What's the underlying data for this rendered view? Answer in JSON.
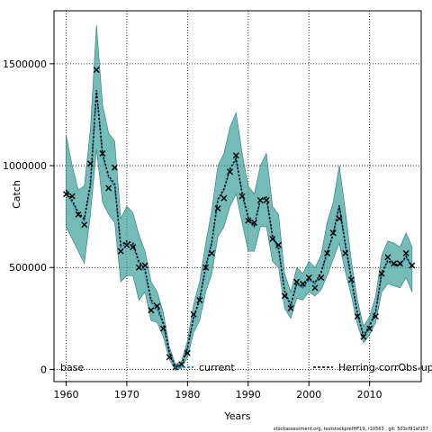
{
  "chart_data": {
    "type": "line",
    "xlabel": "Years",
    "ylabel": "Catch",
    "xlim": [
      1958,
      2018.5
    ],
    "ylim": [
      -60000,
      1760000
    ],
    "x_ticks": [
      1960,
      1970,
      1980,
      1990,
      2000,
      2010
    ],
    "y_ticks": [
      0,
      500000,
      1000000,
      1500000
    ],
    "x_tick_labels": [
      "1960",
      "1970",
      "1980",
      "1990",
      "2000",
      "2010"
    ],
    "y_tick_labels": [
      "0",
      "500000",
      "1000000",
      "1500000"
    ],
    "grid": true,
    "legend": {
      "placement": "bottom",
      "items": [
        {
          "label": "base",
          "color": "#000000",
          "style": "none"
        },
        {
          "label": "current",
          "color": "#1a6fb0",
          "style": "dashed"
        },
        {
          "label": "Herring-corrObs-up",
          "color": "#000000",
          "style": "dashed"
        }
      ]
    },
    "band_color": "#3a9e9a",
    "footer": "stockassessment.org, teststockprefHF19, r10563 , git: 503cf91af157",
    "series": [
      {
        "name": "current",
        "years": [
          1960,
          1961,
          1962,
          1963,
          1964,
          1965,
          1966,
          1967,
          1968,
          1969,
          1970,
          1971,
          1972,
          1973,
          1974,
          1975,
          1976,
          1977,
          1978,
          1979,
          1980,
          1981,
          1982,
          1983,
          1984,
          1985,
          1986,
          1987,
          1988,
          1989,
          1990,
          1991,
          1992,
          1993,
          1994,
          1995,
          1996,
          1997,
          1998,
          1999,
          2000,
          2001,
          2002,
          2003,
          2004,
          2005,
          2006,
          2007,
          2008,
          2009,
          2010,
          2011,
          2012,
          2013,
          2014,
          2015,
          2016,
          2017
        ],
        "fit": [
          870000,
          820000,
          760000,
          730000,
          900000,
          1360000,
          1050000,
          940000,
          900000,
          600000,
          620000,
          610000,
          520000,
          480000,
          330000,
          300000,
          220000,
          80000,
          10000,
          20000,
          100000,
          250000,
          340000,
          500000,
          620000,
          830000,
          880000,
          980000,
          1030000,
          860000,
          740000,
          700000,
          830000,
          840000,
          650000,
          590000,
          380000,
          310000,
          420000,
          400000,
          440000,
          420000,
          470000,
          570000,
          660000,
          800000,
          610000,
          440000,
          270000,
          160000,
          210000,
          280000,
          470000,
          530000,
          510000,
          510000,
          550000,
          500000
        ],
        "lower": [
          700000,
          640000,
          580000,
          520000,
          760000,
          1080000,
          820000,
          760000,
          720000,
          430000,
          460000,
          460000,
          340000,
          380000,
          240000,
          230000,
          160000,
          50000,
          -5000,
          5000,
          60000,
          180000,
          240000,
          380000,
          470000,
          650000,
          700000,
          800000,
          860000,
          720000,
          580000,
          580000,
          700000,
          700000,
          530000,
          500000,
          300000,
          250000,
          350000,
          340000,
          380000,
          360000,
          390000,
          460000,
          540000,
          620000,
          480000,
          360000,
          220000,
          130000,
          170000,
          230000,
          380000,
          420000,
          410000,
          400000,
          450000,
          380000
        ],
        "upper": [
          1150000,
          1000000,
          880000,
          900000,
          1180000,
          1690000,
          1300000,
          1160000,
          1120000,
          740000,
          800000,
          770000,
          660000,
          580000,
          430000,
          380000,
          280000,
          110000,
          25000,
          40000,
          140000,
          320000,
          430000,
          620000,
          780000,
          1000000,
          1060000,
          1190000,
          1260000,
          1060000,
          900000,
          860000,
          1000000,
          1060000,
          800000,
          760000,
          470000,
          380000,
          500000,
          470000,
          530000,
          500000,
          560000,
          720000,
          820000,
          1000000,
          780000,
          530000,
          340000,
          210000,
          260000,
          360000,
          560000,
          630000,
          620000,
          600000,
          670000,
          600000
        ]
      },
      {
        "name": "Herring-corrObs-up",
        "years": [
          1960,
          1961,
          1962,
          1963,
          1964,
          1965,
          1966,
          1967,
          1968,
          1969,
          1970,
          1971,
          1972,
          1973,
          1974,
          1975,
          1976,
          1977,
          1978,
          1979,
          1980,
          1981,
          1982,
          1983,
          1984,
          1985,
          1986,
          1987,
          1988,
          1989,
          1990,
          1991,
          1992,
          1993,
          1994,
          1995,
          1996,
          1997,
          1998,
          1999,
          2000,
          2001,
          2002,
          2003,
          2004,
          2005,
          2006,
          2007,
          2008,
          2009,
          2010,
          2011,
          2012,
          2013,
          2014,
          2015,
          2016,
          2017
        ],
        "fit": [
          880000,
          830000,
          770000,
          740000,
          910000,
          1370000,
          1060000,
          950000,
          910000,
          610000,
          630000,
          620000,
          530000,
          490000,
          340000,
          310000,
          230000,
          85000,
          12000,
          22000,
          105000,
          255000,
          345000,
          505000,
          625000,
          835000,
          885000,
          985000,
          1035000,
          865000,
          745000,
          705000,
          835000,
          845000,
          655000,
          595000,
          385000,
          315000,
          425000,
          405000,
          445000,
          425000,
          475000,
          575000,
          665000,
          805000,
          615000,
          445000,
          275000,
          165000,
          215000,
          285000,
          475000,
          535000,
          515000,
          515000,
          555000,
          505000
        ]
      }
    ],
    "observed": {
      "name": "base",
      "years": [
        1960,
        1961,
        1962,
        1963,
        1964,
        1965,
        1966,
        1967,
        1968,
        1969,
        1970,
        1971,
        1972,
        1973,
        1974,
        1975,
        1976,
        1977,
        1978,
        1979,
        1980,
        1981,
        1982,
        1983,
        1984,
        1985,
        1986,
        1987,
        1988,
        1989,
        1990,
        1991,
        1992,
        1993,
        1994,
        1995,
        1996,
        1997,
        1998,
        1999,
        2000,
        2001,
        2002,
        2003,
        2004,
        2005,
        2006,
        2007,
        2008,
        2009,
        2010,
        2011,
        2012,
        2013,
        2014,
        2015,
        2016,
        2017
      ],
      "values": [
        860000,
        850000,
        760000,
        710000,
        1010000,
        1470000,
        1060000,
        890000,
        990000,
        580000,
        610000,
        600000,
        500000,
        510000,
        290000,
        310000,
        200000,
        60000,
        10000,
        25000,
        80000,
        270000,
        340000,
        500000,
        570000,
        790000,
        840000,
        970000,
        1050000,
        850000,
        730000,
        720000,
        830000,
        830000,
        640000,
        610000,
        360000,
        300000,
        430000,
        420000,
        450000,
        400000,
        450000,
        570000,
        670000,
        740000,
        570000,
        440000,
        260000,
        160000,
        200000,
        260000,
        470000,
        550000,
        520000,
        520000,
        570000,
        510000
      ]
    }
  }
}
